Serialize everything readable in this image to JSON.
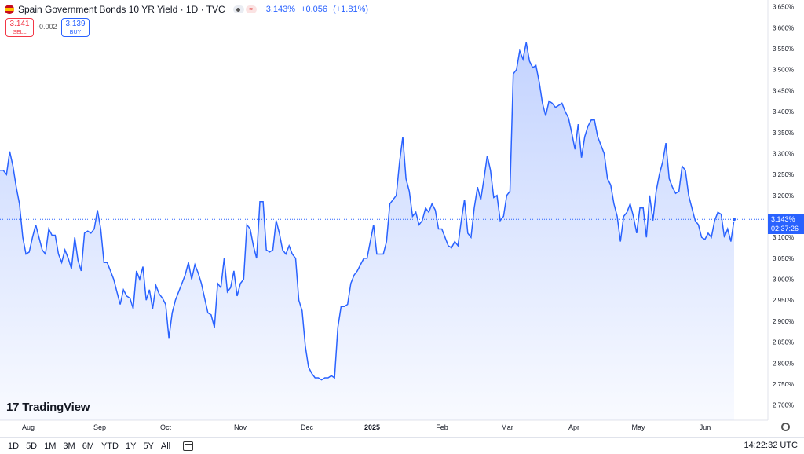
{
  "header": {
    "title": "Spain Government Bonds 10 YR Yield · 1D · TVC",
    "last": "3.143%",
    "change": "+0.056",
    "change_pct": "(+1.81%)"
  },
  "trade": {
    "sell_price": "3.141",
    "sell_label": "SELL",
    "spread": "-0.002",
    "buy_price": "3.139",
    "buy_label": "BUY"
  },
  "price_tag": {
    "value": "3.143%",
    "countdown": "02:37:26"
  },
  "logo": {
    "text": "TradingView"
  },
  "toolbar": {
    "ranges": [
      "1D",
      "5D",
      "1M",
      "3M",
      "6M",
      "YTD",
      "1Y",
      "5Y",
      "All"
    ],
    "clock": "14:22:32 UTC"
  },
  "colors": {
    "line": "#2962ff",
    "accent": "#2962ff",
    "sell": "#f23645"
  },
  "chart_data": {
    "type": "area",
    "y_axis_labels": [
      "3.650%",
      "3.600%",
      "3.550%",
      "3.500%",
      "3.450%",
      "3.400%",
      "3.350%",
      "3.300%",
      "3.250%",
      "3.200%",
      "3.150%",
      "3.100%",
      "3.050%",
      "3.000%",
      "2.950%",
      "2.900%",
      "2.850%",
      "2.800%",
      "2.750%",
      "2.700%"
    ],
    "ylim": [
      2.69,
      3.655
    ],
    "x_axis_labels": [
      "Aug",
      "Sep",
      "Oct",
      "Nov",
      "Dec",
      "2025",
      "Feb",
      "Mar",
      "Apr",
      "May",
      "Jun"
    ],
    "current_value": 3.143,
    "grid": false,
    "values": [
      3.26,
      3.26,
      3.25,
      3.305,
      3.27,
      3.22,
      3.18,
      3.1,
      3.06,
      3.065,
      3.1,
      3.13,
      3.1,
      3.07,
      3.06,
      3.12,
      3.105,
      3.105,
      3.06,
      3.04,
      3.07,
      3.05,
      3.025,
      3.1,
      3.045,
      3.02,
      3.11,
      3.115,
      3.11,
      3.12,
      3.165,
      3.12,
      3.04,
      3.04,
      3.02,
      3.0,
      2.97,
      2.94,
      2.975,
      2.96,
      2.955,
      2.93,
      3.02,
      3.0,
      3.03,
      2.95,
      2.975,
      2.93,
      2.985,
      2.965,
      2.955,
      2.94,
      2.86,
      2.92,
      2.95,
      2.97,
      2.99,
      3.01,
      3.04,
      3.0,
      3.035,
      3.015,
      2.99,
      2.955,
      2.92,
      2.915,
      2.885,
      2.99,
      2.98,
      3.05,
      2.97,
      2.98,
      3.02,
      2.96,
      2.99,
      3.0,
      3.13,
      3.12,
      3.08,
      3.05,
      3.185,
      3.185,
      3.07,
      3.065,
      3.07,
      3.14,
      3.11,
      3.07,
      3.06,
      3.08,
      3.06,
      3.05,
      2.95,
      2.925,
      2.84,
      2.79,
      2.775,
      2.765,
      2.765,
      2.76,
      2.765,
      2.765,
      2.77,
      2.765,
      2.885,
      2.935,
      2.935,
      2.94,
      2.99,
      3.01,
      3.02,
      3.035,
      3.05,
      3.05,
      3.09,
      3.13,
      3.06,
      3.06,
      3.06,
      3.09,
      3.18,
      3.19,
      3.2,
      3.28,
      3.34,
      3.24,
      3.21,
      3.15,
      3.16,
      3.13,
      3.14,
      3.17,
      3.16,
      3.18,
      3.165,
      3.12,
      3.12,
      3.1,
      3.08,
      3.075,
      3.09,
      3.08,
      3.14,
      3.19,
      3.11,
      3.1,
      3.17,
      3.22,
      3.19,
      3.24,
      3.295,
      3.26,
      3.195,
      3.2,
      3.14,
      3.15,
      3.2,
      3.21,
      3.49,
      3.5,
      3.545,
      3.525,
      3.565,
      3.52,
      3.505,
      3.51,
      3.47,
      3.42,
      3.39,
      3.425,
      3.42,
      3.41,
      3.415,
      3.42,
      3.4,
      3.385,
      3.35,
      3.31,
      3.37,
      3.29,
      3.34,
      3.365,
      3.38,
      3.38,
      3.34,
      3.32,
      3.3,
      3.24,
      3.225,
      3.18,
      3.15,
      3.09,
      3.15,
      3.16,
      3.18,
      3.15,
      3.11,
      3.17,
      3.17,
      3.1,
      3.2,
      3.14,
      3.21,
      3.25,
      3.28,
      3.325,
      3.24,
      3.22,
      3.205,
      3.21,
      3.27,
      3.26,
      3.2,
      3.17,
      3.14,
      3.13,
      3.1,
      3.095,
      3.11,
      3.1,
      3.14,
      3.16,
      3.155,
      3.1,
      3.12,
      3.09,
      3.143
    ]
  }
}
